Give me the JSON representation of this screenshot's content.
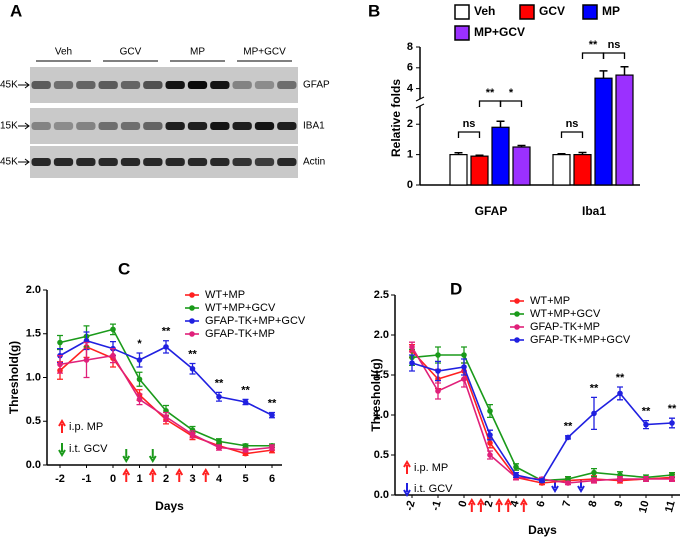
{
  "blot": {
    "panel": "A",
    "groups": [
      "Veh",
      "GCV",
      "MP",
      "MP+GCV"
    ],
    "rows": [
      {
        "marker": "45K",
        "label": "GFAP"
      },
      {
        "marker": "15K",
        "label": "IBA1"
      },
      {
        "marker": "45K",
        "label": "Actin"
      }
    ]
  },
  "chart_data": [
    {
      "type": "bar",
      "panel": "B",
      "ylabel": "Relative folds",
      "categories": [
        "GFAP",
        "Iba1"
      ],
      "series": [
        {
          "name": "Veh",
          "color": "#ffffff",
          "values": [
            1.0,
            1.0
          ],
          "errors": [
            0.06,
            0.03
          ]
        },
        {
          "name": "GCV",
          "color": "#ff0000",
          "values": [
            0.95,
            1.0
          ],
          "errors": [
            0.03,
            0.07
          ]
        },
        {
          "name": "MP",
          "color": "#0000ff",
          "values": [
            1.9,
            5.0
          ],
          "errors": [
            0.2,
            0.7
          ]
        },
        {
          "name": "MP+GCV",
          "color": "#9b30ff",
          "values": [
            1.25,
            5.3
          ],
          "errors": [
            0.05,
            0.8
          ]
        }
      ],
      "ylim": [
        0,
        8
      ],
      "ybreak": [
        2.6,
        3
      ],
      "yticks": [
        0,
        1,
        2,
        4,
        6,
        8
      ],
      "annotations": [
        "ns",
        "**",
        "*",
        "ns",
        "**",
        "ns"
      ]
    },
    {
      "type": "line",
      "panel": "C",
      "xlabel": "Days",
      "ylabel": "Threshold(g)",
      "categories": [
        "-2",
        "-1",
        "0",
        "1",
        "2",
        "3",
        "4",
        "5",
        "6"
      ],
      "series": [
        {
          "name": "WT+MP",
          "color": "#ff2020",
          "values": [
            1.08,
            1.35,
            1.22,
            0.8,
            0.52,
            0.33,
            0.22,
            0.13,
            0.17
          ],
          "errors": [
            0.1,
            0.12,
            0.1,
            0.06,
            0.05,
            0.04,
            0.03,
            0.02,
            0.03
          ]
        },
        {
          "name": "WT+MP+GCV",
          "color": "#1a9a1a",
          "values": [
            1.4,
            1.47,
            1.55,
            0.98,
            0.62,
            0.4,
            0.27,
            0.22,
            0.22
          ],
          "errors": [
            0.08,
            0.12,
            0.06,
            0.08,
            0.06,
            0.04,
            0.03,
            0.02,
            0.02
          ]
        },
        {
          "name": "GFAP-TK+MP+GCV",
          "color": "#2020e0",
          "values": [
            1.25,
            1.42,
            1.33,
            1.2,
            1.35,
            1.1,
            0.78,
            0.72,
            0.57
          ],
          "errors": [
            0.08,
            0.1,
            0.08,
            0.08,
            0.07,
            0.06,
            0.05,
            0.03,
            0.03
          ]
        },
        {
          "name": "GFAP-TK+MP",
          "color": "#e0207a",
          "values": [
            1.15,
            1.2,
            1.25,
            0.75,
            0.55,
            0.35,
            0.2,
            0.17,
            0.2
          ],
          "errors": [
            0.1,
            0.2,
            0.08,
            0.06,
            0.05,
            0.04,
            0.03,
            0.02,
            0.03
          ]
        }
      ],
      "ylim": [
        0,
        2
      ],
      "yticks": [
        {
          "value": 0,
          "label": "0.0"
        },
        {
          "value": 0.5,
          "label": "0.5"
        },
        {
          "value": 1,
          "label": "1.0"
        },
        {
          "value": 1.5,
          "label": "1.5"
        },
        {
          "value": 2,
          "label": "2.0"
        }
      ],
      "significance": [
        null,
        null,
        null,
        "*",
        "**",
        "**",
        "**",
        "**",
        "**"
      ],
      "notes": [
        "i.p. MP",
        "i.t. GCV"
      ]
    },
    {
      "type": "line",
      "panel": "D",
      "xlabel": "Days",
      "ylabel": "Threshold(g)",
      "categories": [
        "-2",
        "-1",
        "0",
        "2",
        "4",
        "6",
        "7",
        "8",
        "9",
        "10",
        "11"
      ],
      "series": [
        {
          "name": "WT+MP",
          "color": "#ff2020",
          "values": [
            1.8,
            1.45,
            1.55,
            0.65,
            0.22,
            0.15,
            0.18,
            0.2,
            0.18,
            0.2,
            0.22
          ],
          "errors": [
            0.08,
            0.12,
            0.1,
            0.06,
            0.03,
            0.02,
            0.03,
            0.04,
            0.03,
            0.03,
            0.04
          ]
        },
        {
          "name": "WT+MP+GCV",
          "color": "#1a9a1a",
          "values": [
            1.72,
            1.75,
            1.75,
            1.05,
            0.35,
            0.18,
            0.2,
            0.28,
            0.25,
            0.22,
            0.25
          ],
          "errors": [
            0.1,
            0.1,
            0.1,
            0.08,
            0.04,
            0.02,
            0.03,
            0.05,
            0.04,
            0.03,
            0.03
          ]
        },
        {
          "name": "GFAP-TK+MP",
          "color": "#e0207a",
          "values": [
            1.85,
            1.3,
            1.45,
            0.5,
            0.22,
            0.2,
            0.15,
            0.18,
            0.2,
            0.2,
            0.2
          ],
          "errors": [
            0.06,
            0.1,
            0.1,
            0.05,
            0.03,
            0.02,
            0.02,
            0.03,
            0.03,
            0.03,
            0.03
          ]
        },
        {
          "name": "GFAP-TK+MP+GCV",
          "color": "#2020e0",
          "values": [
            1.65,
            1.55,
            1.6,
            0.75,
            0.25,
            0.18,
            0.72,
            1.02,
            1.27,
            0.88,
            0.9
          ],
          "errors": [
            0.1,
            0.12,
            0.1,
            0.06,
            0.03,
            0.02,
            0.02,
            0.2,
            0.08,
            0.05,
            0.06
          ]
        }
      ],
      "ylim": [
        0,
        2.5
      ],
      "yticks": [
        {
          "value": 0,
          "label": "0.0"
        },
        {
          "value": 0.5,
          "label": "0.5"
        },
        {
          "value": 1,
          "label": "1.0"
        },
        {
          "value": 1.5,
          "label": "1.5"
        },
        {
          "value": 2,
          "label": "2.0"
        },
        {
          "value": 2.5,
          "label": "2.5"
        }
      ],
      "significance": [
        null,
        null,
        null,
        null,
        null,
        null,
        "**",
        "**",
        "**",
        "**",
        "**"
      ],
      "notes": [
        "i.p. MP",
        "i.t. GCV"
      ]
    }
  ]
}
